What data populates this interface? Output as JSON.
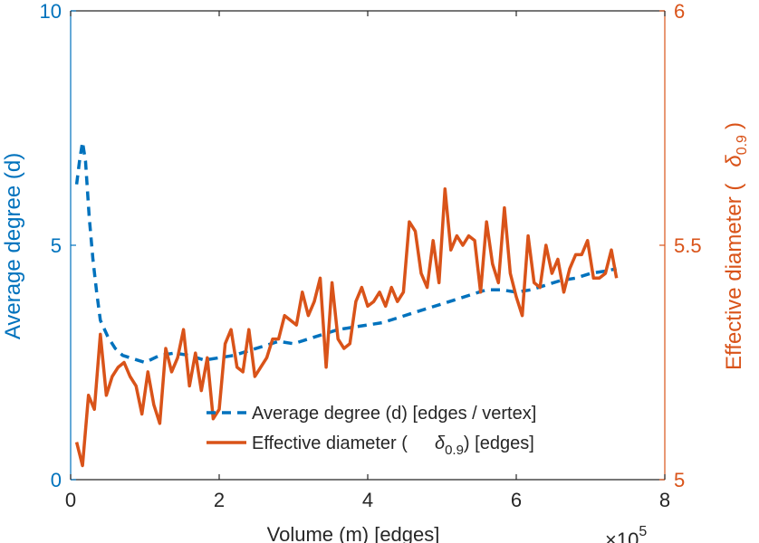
{
  "chart_data": {
    "type": "line",
    "title": "",
    "xlabel": "Volume (m) [edges]",
    "x_exponent_label": "×10",
    "x_exponent_power": "5",
    "xlim": [
      0,
      8
    ],
    "xticks": [
      0,
      2,
      4,
      6,
      8
    ],
    "xtick_labels": [
      "0",
      "2",
      "4",
      "6",
      "8"
    ],
    "left_axis": {
      "label": "Average degree (d)",
      "ylim": [
        0,
        10
      ],
      "ticks": [
        0,
        5,
        10
      ],
      "tick_labels": [
        "0",
        "5",
        "10"
      ],
      "color": "#0072BD"
    },
    "right_axis": {
      "label": "Effective diameter (",
      "label_symbol": "δ",
      "label_sub": "0.9",
      "label_close": ")",
      "ylim": [
        5,
        6
      ],
      "ticks": [
        5,
        5.5,
        6
      ],
      "tick_labels": [
        "5",
        "5.5",
        "6"
      ],
      "color": "#D95319"
    },
    "legend": {
      "placement": "lower-right",
      "entries": [
        {
          "label": "Average degree (d) [edges / vertex]",
          "style": "dashed",
          "color": "#0072BD"
        },
        {
          "label_pre": "Effective diameter (",
          "symbol": "δ",
          "sub": "0.9",
          "label_post": ") [edges]",
          "style": "solid",
          "color": "#D95319"
        }
      ]
    },
    "series": [
      {
        "name": "Average degree (d) [edges / vertex]",
        "axis": "left",
        "style": "dashed",
        "color": "#0072BD",
        "x": [
          0.08,
          0.12,
          0.16,
          0.2,
          0.25,
          0.3,
          0.35,
          0.4,
          0.5,
          0.6,
          0.7,
          0.8,
          0.9,
          1.0,
          1.2,
          1.4,
          1.6,
          1.8,
          2.0,
          2.2,
          2.4,
          2.6,
          2.8,
          3.0,
          3.2,
          3.4,
          3.6,
          3.8,
          4.0,
          4.2,
          4.4,
          4.6,
          4.8,
          5.0,
          5.2,
          5.4,
          5.6,
          5.8,
          6.0,
          6.2,
          6.4,
          6.6,
          6.8,
          7.0,
          7.2,
          7.35
        ],
        "y": [
          6.3,
          6.8,
          7.2,
          6.8,
          5.6,
          4.7,
          4.0,
          3.4,
          3.05,
          2.8,
          2.65,
          2.6,
          2.55,
          2.5,
          2.65,
          2.7,
          2.65,
          2.55,
          2.6,
          2.65,
          2.75,
          2.85,
          2.95,
          2.9,
          3.0,
          3.1,
          3.2,
          3.25,
          3.3,
          3.35,
          3.45,
          3.55,
          3.65,
          3.75,
          3.85,
          3.95,
          4.05,
          4.05,
          4.0,
          4.05,
          4.15,
          4.25,
          4.3,
          4.4,
          4.45,
          4.5
        ]
      },
      {
        "name": "Effective diameter (δ0.9) [edges]",
        "axis": "right",
        "style": "solid",
        "color": "#D95319",
        "x": [
          0.08,
          0.16,
          0.24,
          0.32,
          0.4,
          0.48,
          0.56,
          0.64,
          0.72,
          0.8,
          0.88,
          0.96,
          1.04,
          1.12,
          1.2,
          1.28,
          1.36,
          1.44,
          1.52,
          1.6,
          1.68,
          1.76,
          1.84,
          1.92,
          2.0,
          2.08,
          2.16,
          2.24,
          2.32,
          2.4,
          2.48,
          2.56,
          2.64,
          2.72,
          2.8,
          2.88,
          2.96,
          3.04,
          3.12,
          3.2,
          3.28,
          3.36,
          3.44,
          3.52,
          3.6,
          3.68,
          3.76,
          3.84,
          3.92,
          4.0,
          4.08,
          4.16,
          4.24,
          4.32,
          4.4,
          4.48,
          4.56,
          4.64,
          4.72,
          4.8,
          4.88,
          4.96,
          5.04,
          5.12,
          5.2,
          5.28,
          5.36,
          5.44,
          5.52,
          5.6,
          5.68,
          5.76,
          5.84,
          5.92,
          6.0,
          6.08,
          6.16,
          6.24,
          6.32,
          6.4,
          6.48,
          6.56,
          6.64,
          6.72,
          6.8,
          6.88,
          6.96,
          7.04,
          7.12,
          7.2,
          7.28,
          7.35
        ],
        "y": [
          5.08,
          5.03,
          5.18,
          5.15,
          5.31,
          5.18,
          5.22,
          5.24,
          5.25,
          5.22,
          5.2,
          5.14,
          5.23,
          5.16,
          5.12,
          5.28,
          5.23,
          5.26,
          5.32,
          5.2,
          5.27,
          5.19,
          5.26,
          5.13,
          5.15,
          5.29,
          5.32,
          5.24,
          5.23,
          5.32,
          5.22,
          5.24,
          5.26,
          5.3,
          5.3,
          5.35,
          5.34,
          5.33,
          5.4,
          5.35,
          5.38,
          5.43,
          5.24,
          5.42,
          5.3,
          5.28,
          5.29,
          5.38,
          5.41,
          5.37,
          5.38,
          5.4,
          5.37,
          5.41,
          5.38,
          5.4,
          5.55,
          5.53,
          5.44,
          5.41,
          5.51,
          5.42,
          5.62,
          5.49,
          5.52,
          5.5,
          5.52,
          5.51,
          5.4,
          5.55,
          5.46,
          5.42,
          5.58,
          5.44,
          5.39,
          5.35,
          5.52,
          5.42,
          5.41,
          5.5,
          5.44,
          5.47,
          5.4,
          5.45,
          5.48,
          5.48,
          5.51,
          5.43,
          5.43,
          5.44,
          5.49,
          5.43
        ]
      }
    ]
  }
}
